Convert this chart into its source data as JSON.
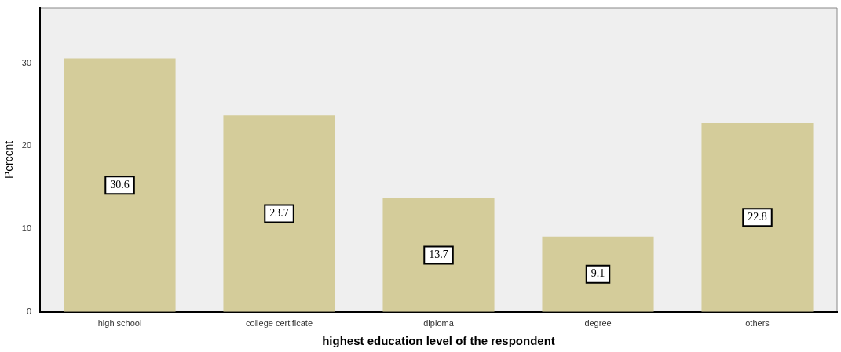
{
  "chart_data": {
    "type": "bar",
    "xlabel": "highest education level of the respondent",
    "ylabel": "Percent",
    "categories": [
      "high school",
      "college certificate",
      "diploma",
      "degree",
      "others"
    ],
    "values": [
      30.6,
      23.7,
      13.7,
      9.1,
      22.8
    ],
    "color": "#d4cc9a",
    "ylim": [
      0,
      36.7
    ],
    "yticks": [
      0,
      10,
      20,
      30
    ],
    "grid": false,
    "legend": false,
    "data_labels": true
  }
}
